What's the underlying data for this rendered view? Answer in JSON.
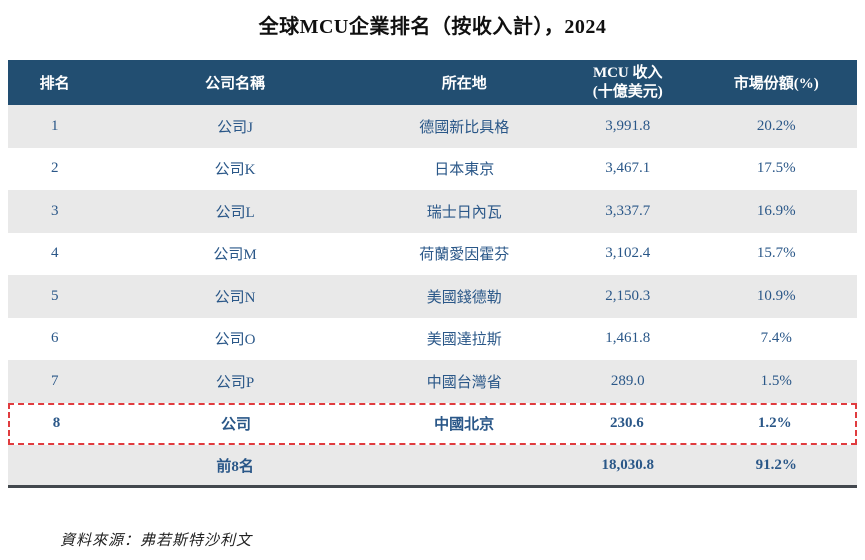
{
  "title": "全球MCU企業排名（按收入計），2024",
  "table": {
    "columns": [
      {
        "label": "排名"
      },
      {
        "label": "公司名稱"
      },
      {
        "label": "所在地"
      },
      {
        "label": "MCU 收入",
        "sublabel": "(十億美元)"
      },
      {
        "label": "市場份額(%)"
      }
    ],
    "rows": [
      {
        "rank": "1",
        "company": "公司J",
        "location": "德國新比具格",
        "revenue": "3,991.8",
        "share": "20.2%"
      },
      {
        "rank": "2",
        "company": "公司K",
        "location": "日本東京",
        "revenue": "3,467.1",
        "share": "17.5%"
      },
      {
        "rank": "3",
        "company": "公司L",
        "location": "瑞士日內瓦",
        "revenue": "3,337.7",
        "share": "16.9%"
      },
      {
        "rank": "4",
        "company": "公司M",
        "location": "荷蘭愛因霍芬",
        "revenue": "3,102.4",
        "share": "15.7%"
      },
      {
        "rank": "5",
        "company": "公司N",
        "location": "美國錢德勒",
        "revenue": "2,150.3",
        "share": "10.9%"
      },
      {
        "rank": "6",
        "company": "公司O",
        "location": "美國達拉斯",
        "revenue": "1,461.8",
        "share": "7.4%"
      },
      {
        "rank": "7",
        "company": "公司P",
        "location": "中國台灣省",
        "revenue": "289.0",
        "share": "1.5%"
      },
      {
        "rank": "8",
        "company": "公司",
        "location": "中國北京",
        "revenue": "230.6",
        "share": "1.2%",
        "highlighted": true
      }
    ],
    "total_row": {
      "label": "前8名",
      "revenue": "18,030.8",
      "share": "91.2%"
    }
  },
  "source": "資料來源：弗若斯特沙利文",
  "colors": {
    "header_bg": "#224E71",
    "header_text": "#ffffff",
    "cell_text": "#2A5788",
    "row_alt_bg": "#E9E9E9",
    "highlight_border": "#E03C3F",
    "bottom_border": "#43484E"
  }
}
